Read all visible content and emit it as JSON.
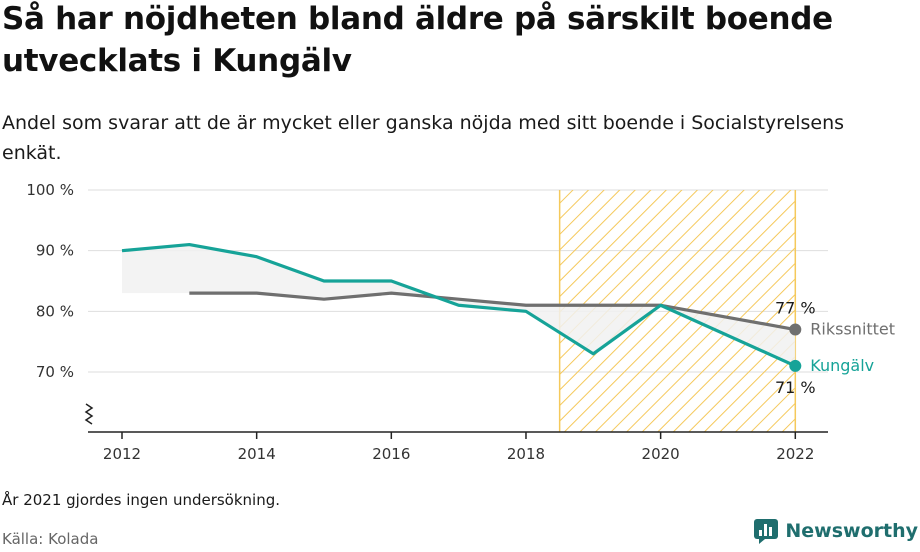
{
  "title": "Så har nöjdheten bland äldre på särskilt boende utvecklats i Kungälv",
  "subtitle": "Andel som svarar att de är mycket eller ganska nöjda med sitt boende i Socialstyrelsens enkät.",
  "note": "År 2021 gjordes ingen undersökning.",
  "source": "Källa: Kolada",
  "brand": "Newsworthy",
  "colors": {
    "kungalv": "#16a398",
    "riket": "#6f6f6f",
    "hatch": "#f5c95b",
    "band": "#f1f1f1",
    "grid": "#dedede",
    "brand": "#1f6e6e"
  },
  "chart_data": {
    "type": "line",
    "x": [
      2012,
      2013,
      2014,
      2015,
      2016,
      2017,
      2018,
      2019,
      2020,
      2022
    ],
    "ylim": [
      60,
      100
    ],
    "yticks": [
      70,
      80,
      90,
      100
    ],
    "ytick_labels": [
      "70 %",
      "80 %",
      "90 %",
      "100 %"
    ],
    "xticks": [
      2012,
      2014,
      2016,
      2018,
      2020,
      2022
    ],
    "xtick_labels": [
      "2012",
      "2014",
      "2016",
      "2018",
      "2020",
      "2022"
    ],
    "highlight_range": [
      2018.5,
      2022
    ],
    "series": [
      {
        "name": "Kungälv",
        "color": "#16a398",
        "x": [
          2012,
          2013,
          2014,
          2015,
          2016,
          2017,
          2018,
          2019,
          2020,
          2022
        ],
        "values": [
          90,
          91,
          89,
          85,
          85,
          81,
          80,
          73,
          81,
          71
        ],
        "end_label": "71 %"
      },
      {
        "name": "Rikssnittet",
        "color": "#6f6f6f",
        "x": [
          2013,
          2014,
          2015,
          2016,
          2017,
          2018,
          2019,
          2020,
          2022
        ],
        "values": [
          83,
          83,
          82,
          83,
          82,
          81,
          81,
          81,
          77
        ],
        "end_label": "77 %"
      }
    ]
  }
}
